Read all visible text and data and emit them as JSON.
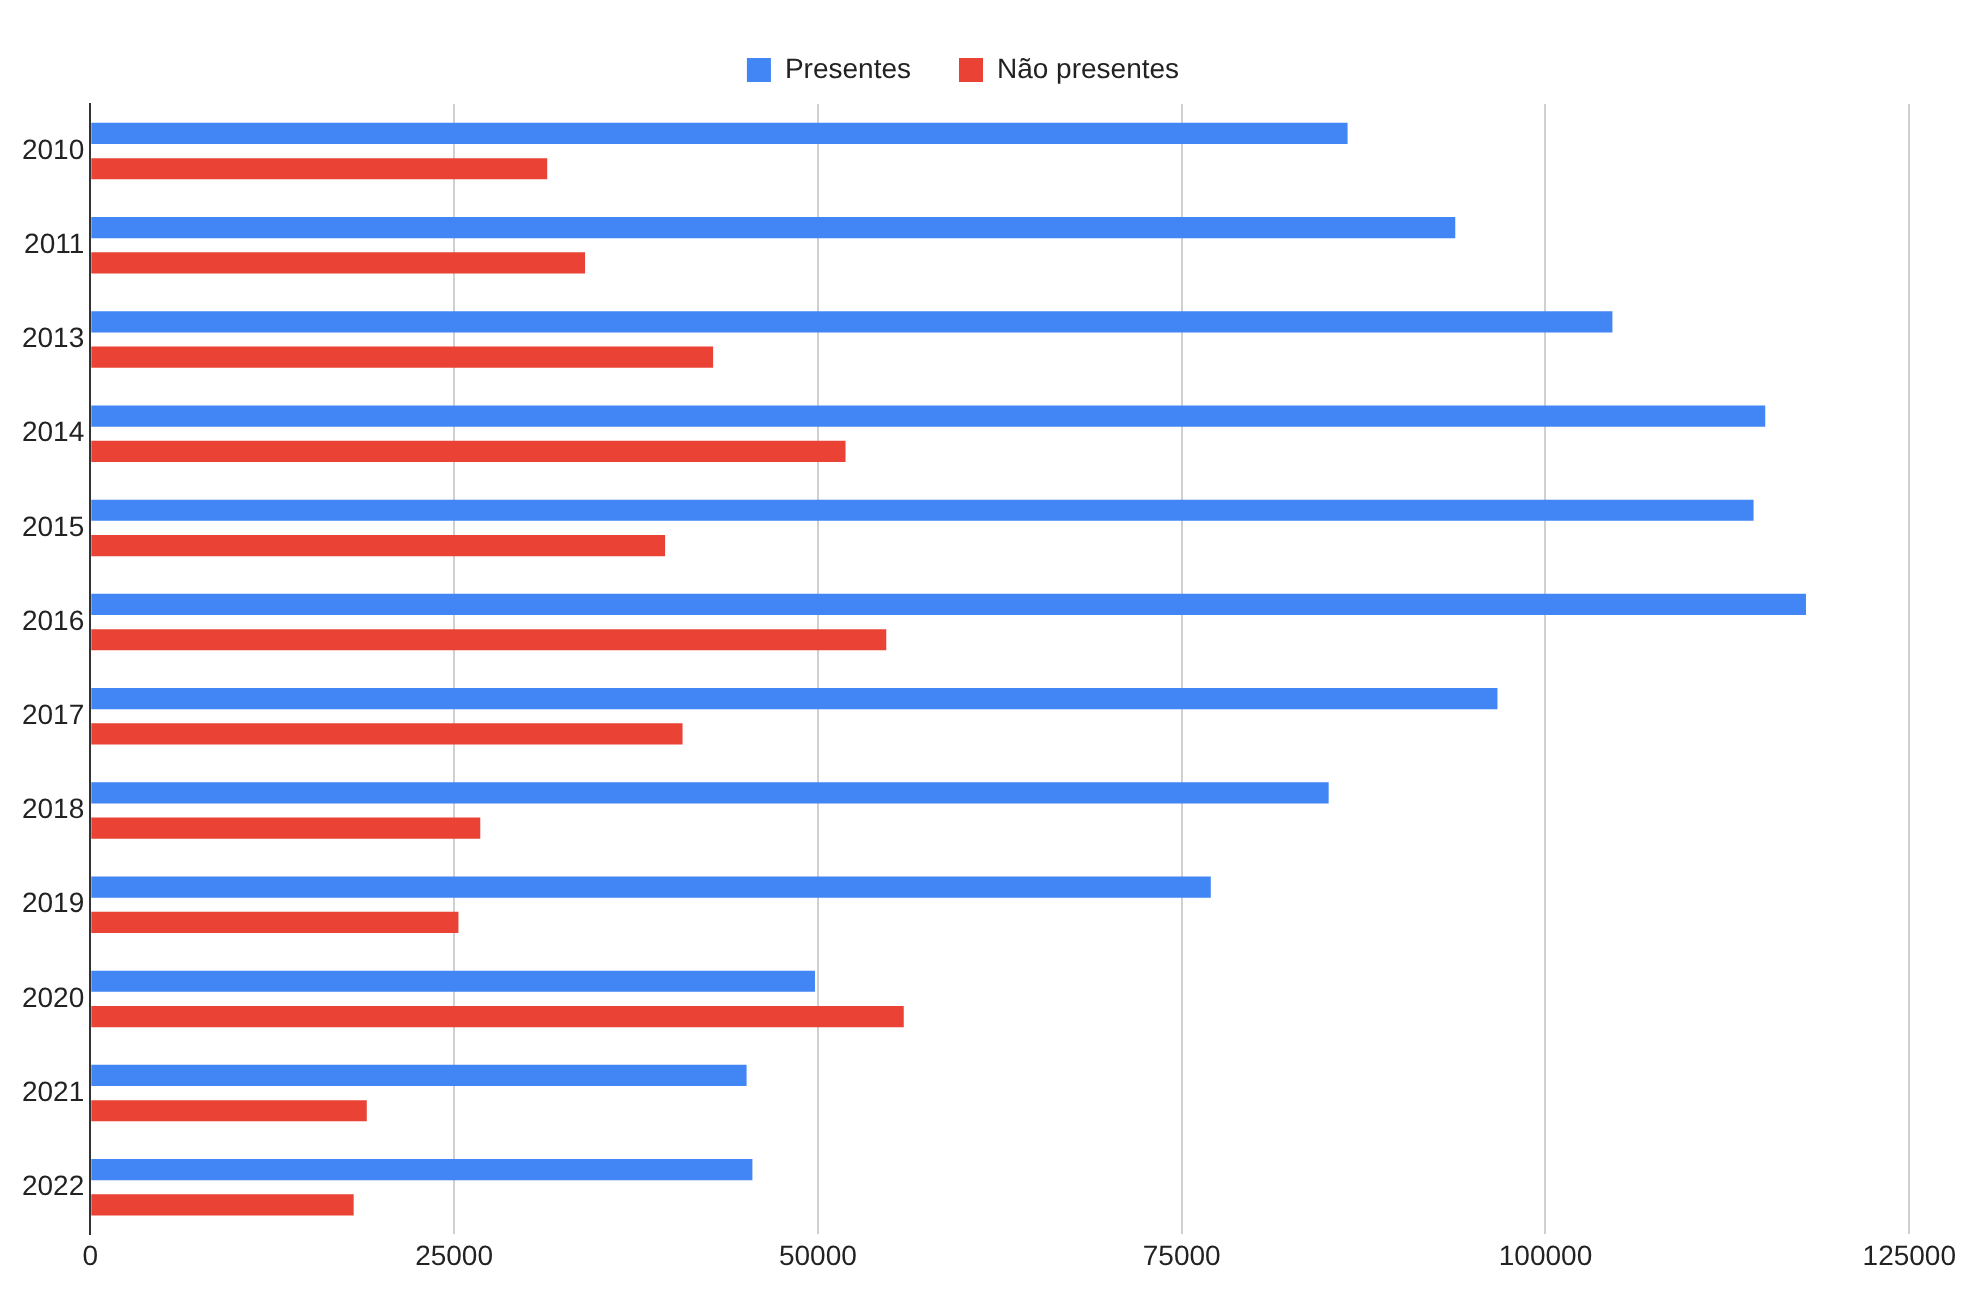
{
  "chart_data": {
    "type": "bar",
    "orientation": "horizontal",
    "categories": [
      "2010",
      "2011",
      "2013",
      "2014",
      "2015",
      "2016",
      "2017",
      "2018",
      "2019",
      "2020",
      "2021",
      "2022"
    ],
    "series": [
      {
        "name": "Presentes",
        "color": "#4285f4",
        "values": [
          86400,
          93800,
          104600,
          115100,
          114300,
          117900,
          96700,
          85100,
          77000,
          49800,
          45100,
          45500
        ]
      },
      {
        "name": "Não presentes",
        "color": "#ea4335",
        "values": [
          31400,
          34000,
          42800,
          51900,
          39500,
          54700,
          40700,
          26800,
          25300,
          55900,
          19000,
          18100
        ]
      }
    ],
    "xlim": [
      0,
      125000
    ],
    "xticks": [
      0,
      25000,
      50000,
      75000,
      100000,
      125000
    ],
    "grid": "x",
    "legend": "top"
  }
}
